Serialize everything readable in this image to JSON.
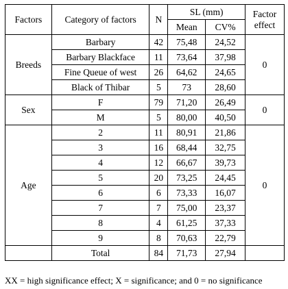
{
  "headers": {
    "factors": "Factors",
    "category": "Category of factors",
    "n": "N",
    "sl": "SL (mm)",
    "mean": "Mean",
    "cv": "CV%",
    "effect_line1": "Factor",
    "effect_line2": "effect"
  },
  "groups": [
    {
      "factor": "Breeds",
      "effect": "0",
      "rows": [
        {
          "category": "Barbary",
          "n": "42",
          "mean": "75,48",
          "cv": "24,52"
        },
        {
          "category": "Barbary Blackface",
          "n": "11",
          "mean": "73,64",
          "cv": "37,98"
        },
        {
          "category": "Fine Queue of west",
          "n": "26",
          "mean": "64,62",
          "cv": "24,65"
        },
        {
          "category": "Black of Thibar",
          "n": "5",
          "mean": "73",
          "cv": "28,60"
        }
      ]
    },
    {
      "factor": "Sex",
      "effect": "0",
      "rows": [
        {
          "category": "F",
          "n": "79",
          "mean": "71,20",
          "cv": "26,49"
        },
        {
          "category": "M",
          "n": "5",
          "mean": "80,00",
          "cv": "40,50"
        }
      ]
    },
    {
      "factor": "Age",
      "effect": "0",
      "rows": [
        {
          "category": "2",
          "n": "11",
          "mean": "80,91",
          "cv": "21,86"
        },
        {
          "category": "3",
          "n": "16",
          "mean": "68,44",
          "cv": "32,75"
        },
        {
          "category": "4",
          "n": "12",
          "mean": "66,67",
          "cv": "39,73"
        },
        {
          "category": "5",
          "n": "20",
          "mean": "73,25",
          "cv": "24,45"
        },
        {
          "category": "6",
          "n": "6",
          "mean": "73,33",
          "cv": "16,07"
        },
        {
          "category": "7",
          "n": "7",
          "mean": "75,00",
          "cv": "23,37"
        },
        {
          "category": "8",
          "n": "4",
          "mean": "61,25",
          "cv": "37,33"
        },
        {
          "category": "9",
          "n": "8",
          "mean": "70,63",
          "cv": "22,79"
        }
      ]
    }
  ],
  "total": {
    "label": "Total",
    "n": "84",
    "mean": "71,73",
    "cv": "27,94"
  },
  "footnote": "XX = high significance effect; X = significance; and 0 = no significance"
}
